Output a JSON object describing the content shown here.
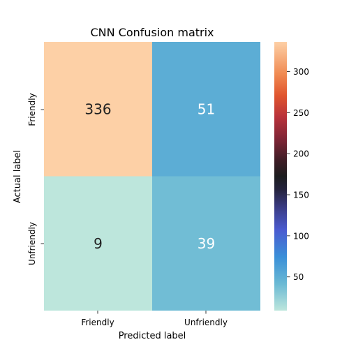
{
  "chart_data": {
    "type": "heatmap",
    "title": "CNN Confusion matrix",
    "xlabel": "Predicted label",
    "ylabel": "Actual label",
    "x_categories": [
      "Friendly",
      "Unfriendly"
    ],
    "y_categories": [
      "Friendly",
      "Unfriendly"
    ],
    "values": [
      [
        336,
        51
      ],
      [
        9,
        39
      ]
    ],
    "colormap": "icefire",
    "colorbar": {
      "vmin": 9,
      "vmax": 336,
      "ticks": [
        50,
        100,
        150,
        200,
        250,
        300
      ]
    },
    "annotation_colors": {
      "light_cell": "#222222",
      "dark_cell": "#ffffff"
    },
    "grid": false,
    "legend": "none"
  }
}
